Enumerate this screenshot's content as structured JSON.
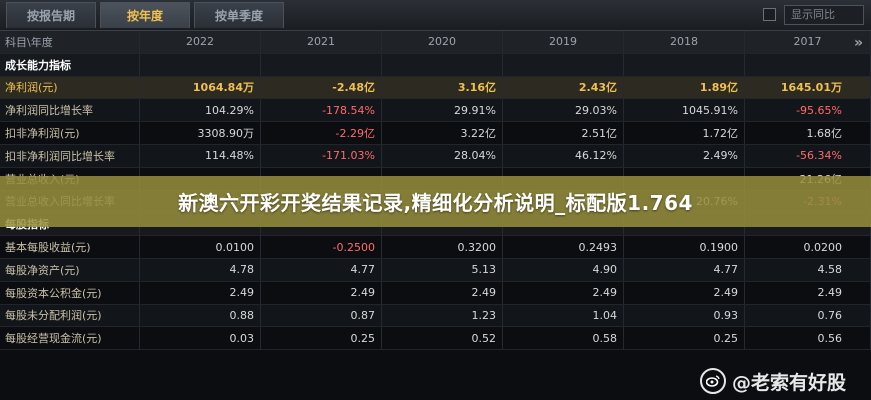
{
  "tabs": [
    "按报告期",
    "按年度",
    "按单季度"
  ],
  "toolbar": {
    "search_label": "显示同比"
  },
  "table": {
    "header": [
      "科目\\年度",
      "2022",
      "2021",
      "2020",
      "2019",
      "2018",
      "2017"
    ],
    "rows": [
      {
        "type": "section",
        "label": "成长能力指标",
        "values": [
          "",
          "",
          "",
          "",
          "",
          ""
        ]
      },
      {
        "type": "hl",
        "label": "净利润(元)",
        "values": [
          "1064.84万",
          "-2.48亿",
          "3.16亿",
          "2.43亿",
          "1.89亿",
          "1645.01万"
        ]
      },
      {
        "type": "alt",
        "label": "净利润同比增长率",
        "values": [
          "104.29%",
          "-178.54%",
          "29.91%",
          "29.03%",
          "1045.91%",
          "-95.65%"
        ]
      },
      {
        "type": "normal",
        "label": "扣非净利润(元)",
        "values": [
          "3308.90万",
          "-2.29亿",
          "3.22亿",
          "2.51亿",
          "1.72亿",
          "1.68亿"
        ]
      },
      {
        "type": "alt",
        "label": "扣非净利润同比增长率",
        "values": [
          "114.48%",
          "-171.03%",
          "28.04%",
          "46.12%",
          "2.49%",
          "-56.34%"
        ]
      },
      {
        "type": "normal",
        "label": "营业总收入(元)",
        "values": [
          "",
          "",
          "",
          "",
          "",
          "21.26亿"
        ]
      },
      {
        "type": "alt",
        "label": "营业总收入同比增长率",
        "values": [
          "53.46%",
          "0.84%",
          "0.26%",
          "4.00%",
          "20.76%",
          "-2.31%"
        ]
      },
      {
        "type": "section",
        "label": "每股指标",
        "values": [
          "",
          "",
          "",
          "",
          "",
          ""
        ]
      },
      {
        "type": "normal",
        "label": "基本每股收益(元)",
        "values": [
          "0.0100",
          "-0.2500",
          "0.3200",
          "0.2493",
          "0.1900",
          "0.0200"
        ]
      },
      {
        "type": "alt",
        "label": "每股净资产(元)",
        "values": [
          "4.78",
          "4.77",
          "5.13",
          "4.90",
          "4.77",
          "4.58"
        ]
      },
      {
        "type": "normal",
        "label": "每股资本公积金(元)",
        "values": [
          "2.49",
          "2.49",
          "2.49",
          "2.49",
          "2.49",
          "2.49"
        ]
      },
      {
        "type": "alt",
        "label": "每股未分配利润(元)",
        "values": [
          "0.88",
          "0.87",
          "1.23",
          "1.04",
          "0.93",
          "0.76"
        ]
      },
      {
        "type": "normal",
        "label": "每股经营现金流(元)",
        "values": [
          "0.03",
          "0.25",
          "0.52",
          "0.58",
          "0.25",
          "0.56"
        ]
      }
    ]
  },
  "overlay": {
    "text": "新澳六开彩开奖结果记录,精细化分析说明_标配版1.764"
  },
  "watermark": {
    "text": "@老索有好股"
  },
  "colors": {
    "accent": "#f0c050",
    "negative": "#ff6b6b",
    "banner": "#968e3c"
  }
}
